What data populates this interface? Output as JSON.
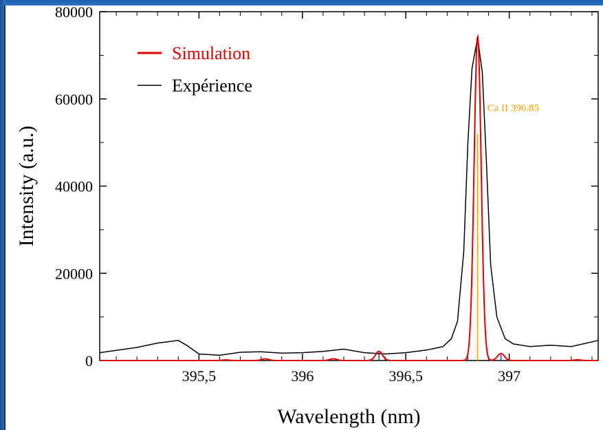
{
  "chart_data": {
    "type": "line",
    "title": "",
    "xlabel": "Wavelength (nm)",
    "ylabel": "Intensity (a.u.)",
    "xlim": [
      395.02,
      397.43
    ],
    "ylim": [
      0,
      80000
    ],
    "x_ticks": [
      395.5,
      396,
      396.5,
      397
    ],
    "x_tick_labels": [
      "395,5",
      "396",
      "396,5",
      "397"
    ],
    "y_ticks": [
      0,
      20000,
      40000,
      60000,
      80000
    ],
    "y_tick_labels": [
      "0",
      "20000",
      "40000",
      "60000",
      "80000"
    ],
    "legend": {
      "position": "top-left"
    },
    "colors": {
      "simulation": "#e00000",
      "experience": "#000000",
      "annotation": "#f0a000",
      "minor_line": "#3030c0"
    },
    "series": [
      {
        "name": "Simulation",
        "kind": "gaussian-sum",
        "width_nm": 0.017,
        "peaks": [
          {
            "x": 395.63,
            "y": 150
          },
          {
            "x": 395.82,
            "y": 400
          },
          {
            "x": 396.15,
            "y": 400
          },
          {
            "x": 396.37,
            "y": 2100
          },
          {
            "x": 396.847,
            "y": 74500
          },
          {
            "x": 396.96,
            "y": 1600
          },
          {
            "x": 397.33,
            "y": 150
          }
        ]
      },
      {
        "name": "Expérience",
        "x": [
          395.02,
          395.2,
          395.3,
          395.4,
          395.44,
          395.5,
          395.6,
          395.7,
          395.8,
          395.9,
          396.0,
          396.1,
          396.2,
          396.3,
          396.4,
          396.5,
          396.6,
          396.68,
          396.72,
          396.75,
          396.78,
          396.8,
          396.82,
          396.847,
          396.87,
          396.89,
          396.91,
          396.94,
          396.98,
          397.02,
          397.1,
          397.2,
          397.3,
          397.43
        ],
        "y": [
          1800,
          3000,
          4000,
          4600,
          3500,
          1500,
          1200,
          1900,
          2000,
          1700,
          1800,
          2100,
          2600,
          1800,
          1500,
          1800,
          2400,
          3200,
          5000,
          9000,
          25000,
          50000,
          67000,
          74000,
          66000,
          45000,
          22000,
          10000,
          5000,
          3800,
          3200,
          3500,
          3200,
          4600
        ]
      }
    ],
    "stick_lines": [
      {
        "x": 396.847,
        "y": 52000,
        "color": "#f0a000"
      },
      {
        "x": 396.37,
        "y": 1800,
        "color": "#3030c0"
      },
      {
        "x": 396.96,
        "y": 1300,
        "color": "#3030c0"
      }
    ],
    "annotations": [
      {
        "text": "Ca II 396.85",
        "x": 396.847,
        "y": 58000
      }
    ]
  }
}
